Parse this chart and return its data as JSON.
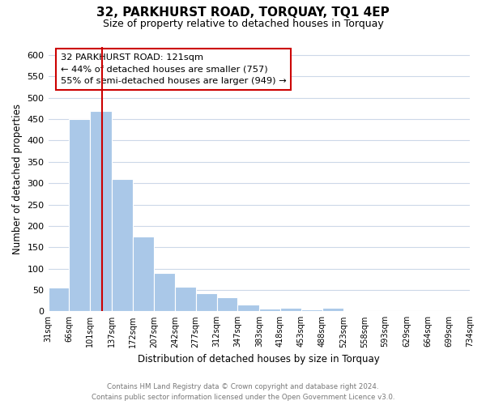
{
  "title": "32, PARKHURST ROAD, TORQUAY, TQ1 4EP",
  "subtitle": "Size of property relative to detached houses in Torquay",
  "xlabel": "Distribution of detached houses by size in Torquay",
  "ylabel": "Number of detached properties",
  "bar_values": [
    55,
    450,
    470,
    310,
    175,
    90,
    58,
    42,
    32,
    16,
    6,
    8,
    4,
    8,
    2,
    1,
    0,
    1,
    0,
    1
  ],
  "bin_edges": [
    31,
    66,
    101,
    137,
    172,
    207,
    242,
    277,
    312,
    347,
    383,
    418,
    453,
    488,
    523,
    558,
    593,
    629,
    664,
    699,
    734
  ],
  "bin_labels": [
    "31sqm",
    "66sqm",
    "101sqm",
    "137sqm",
    "172sqm",
    "207sqm",
    "242sqm",
    "277sqm",
    "312sqm",
    "347sqm",
    "383sqm",
    "418sqm",
    "453sqm",
    "488sqm",
    "523sqm",
    "558sqm",
    "593sqm",
    "629sqm",
    "664sqm",
    "699sqm",
    "734sqm"
  ],
  "bar_color": "#aac8e8",
  "bar_edge_color": "#aac8e8",
  "vline_x": 121,
  "vline_color": "#cc0000",
  "ylim": [
    0,
    620
  ],
  "yticks": [
    0,
    50,
    100,
    150,
    200,
    250,
    300,
    350,
    400,
    450,
    500,
    550,
    600
  ],
  "annotation_title": "32 PARKHURST ROAD: 121sqm",
  "annotation_line1": "← 44% of detached houses are smaller (757)",
  "annotation_line2": "55% of semi-detached houses are larger (949) →",
  "annotation_box_color": "#ffffff",
  "annotation_box_edge": "#cc0000",
  "footer_line1": "Contains HM Land Registry data © Crown copyright and database right 2024.",
  "footer_line2": "Contains public sector information licensed under the Open Government Licence v3.0.",
  "background_color": "#ffffff",
  "grid_color": "#ccd8e8"
}
